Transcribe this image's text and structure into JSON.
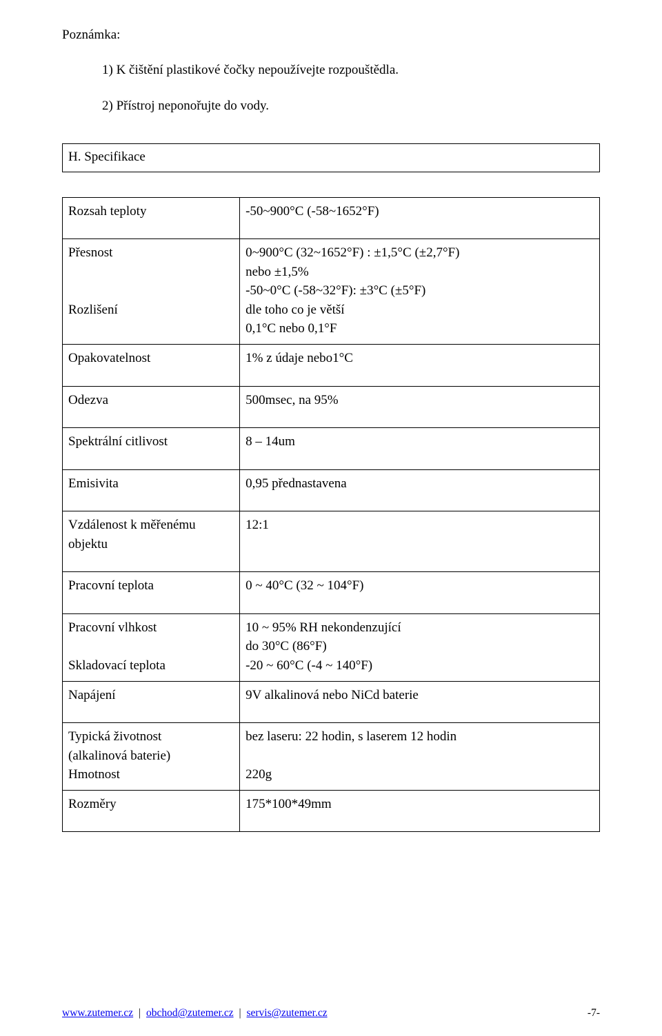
{
  "note": {
    "heading": "Poznámka:",
    "item1": "1) K čištění plastikové čočky nepoužívejte rozpouštědla.",
    "item2": "2) Přístroj neponořujte do vody."
  },
  "section_heading": "H. Specifikace",
  "table": {
    "rows": [
      {
        "label": "Rozsah teploty",
        "value": "-50~900°C  (-58~1652°F)",
        "tall": true
      },
      {
        "label_multiline": [
          "Přesnost",
          "",
          "",
          "Rozlišení"
        ],
        "value_multiline": [
          "0~900°C (32~1652°F) : ±1,5°C (±2,7°F)",
          "nebo ±1,5%",
          "-50~0°C (-58~32°F): ±3°C (±5°F)",
          "dle toho co je větší",
          "0,1°C nebo 0,1°F"
        ]
      },
      {
        "label": "Opakovatelnost",
        "value": "1% z údaje  nebo1°C",
        "tall": true
      },
      {
        "label": "Odezva",
        "value": "500msec, na 95%",
        "tall": true
      },
      {
        "label": "Spektrální citlivost",
        "value": "8 – 14um",
        "tall": true
      },
      {
        "label": "Emisivita",
        "value": "0,95 přednastavena",
        "tall": true
      },
      {
        "label_multiline": [
          "Vzdálenost k měřenému",
          "objektu"
        ],
        "value": "12:1",
        "tall": true
      },
      {
        "label": "Pracovní teplota",
        "value": "0 ~ 40°C (32 ~ 104°F)",
        "tall": true
      },
      {
        "label_multiline": [
          "Pracovní vlhkost",
          "",
          "Skladovací teplota"
        ],
        "value_multiline": [
          "10 ~ 95% RH nekondenzující",
          "do 30°C (86°F)",
          "-20 ~ 60°C (-4 ~ 140°F)"
        ]
      },
      {
        "label": "Napájení",
        "value": "9V alkalinová nebo NiCd baterie",
        "tall": true
      },
      {
        "label_multiline": [
          "Typická životnost",
          "(alkalinová baterie)",
          "Hmotnost"
        ],
        "value_multiline": [
          "bez laseru: 22 hodin, s laserem 12 hodin",
          "",
          "220g"
        ]
      },
      {
        "label": "Rozměry",
        "value": "175*100*49mm",
        "tall": true
      }
    ]
  },
  "footer": {
    "link1": "www.zutemer.cz",
    "link2": "obchod@zutemer.cz",
    "link3": "servis@zutemer.cz",
    "separator": "|",
    "page": "-7-"
  },
  "colors": {
    "text": "#000000",
    "link": "#0000ee",
    "background": "#ffffff",
    "border": "#000000"
  },
  "typography": {
    "body_font": "Times New Roman",
    "body_size_pt": 14,
    "footer_size_pt": 11
  }
}
